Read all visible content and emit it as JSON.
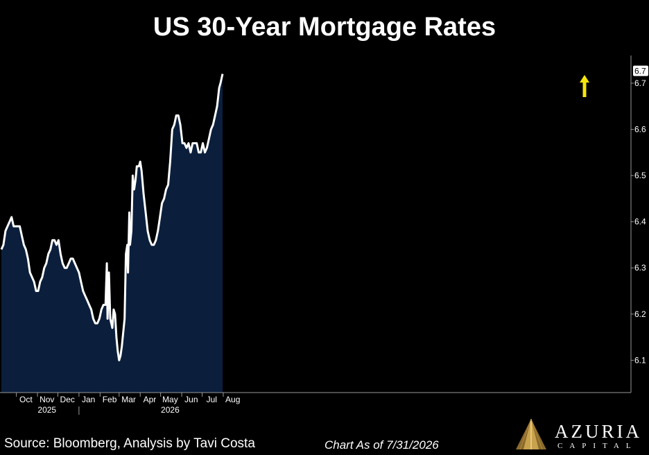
{
  "header": {
    "title": "US 30-Year Mortgage Rates"
  },
  "footer": {
    "source": "Source: Bloomberg, Analysis by Tavi Costa",
    "as_of": "Chart As of 7/31/2026"
  },
  "logo": {
    "word": "AZURIA",
    "sub": "CAPITAL"
  },
  "colors": {
    "background": "#000000",
    "area_fill": "#0b1f3d",
    "line": "#ffffff",
    "arrow": "#f5e60a",
    "axis": "#9a9a9a",
    "last_value_badge_bg": "#ffffff",
    "last_value_badge_text": "#000000"
  },
  "chart_data": {
    "type": "area",
    "title": "US 30-Year Mortgage Rates",
    "xlabel": "",
    "ylabel": "",
    "y_axis_side": "right",
    "ylim": [
      6.03,
      6.76
    ],
    "y_ticks": [
      6.1,
      6.2,
      6.3,
      6.4,
      6.5,
      6.6,
      6.7
    ],
    "y_tick_labels": [
      "6.1",
      "6.2",
      "6.3",
      "6.4",
      "6.5",
      "6.6",
      "6.7"
    ],
    "x_months": [
      {
        "label": "Oct",
        "date": "2025-10-15"
      },
      {
        "label": "Nov",
        "date": "2025-11-15"
      },
      {
        "label": "Dec",
        "date": "2025-12-15"
      },
      {
        "label": "Jan",
        "date": "2026-01-15"
      },
      {
        "label": "Feb",
        "date": "2026-02-15"
      },
      {
        "label": "Mar",
        "date": "2026-03-15"
      },
      {
        "label": "Apr",
        "date": "2026-04-15"
      },
      {
        "label": "May",
        "date": "2026-05-15"
      },
      {
        "label": "Jun",
        "date": "2026-06-15"
      },
      {
        "label": "Jul",
        "date": "2026-07-15"
      },
      {
        "label": "Aug",
        "date": "2026-08-15"
      }
    ],
    "x_years": [
      {
        "label": "2025",
        "date": "2025-11-15"
      },
      {
        "label": "2026",
        "date": "2026-05-15"
      }
    ],
    "year_divider_date": "2026-01-01",
    "last_value_label": "6.7",
    "annotation": "up-arrow",
    "legend": "none",
    "grid": false,
    "series": [
      {
        "points": [
          [
            "2025-09-09",
            6.34
          ],
          [
            "2025-09-12",
            6.35
          ],
          [
            "2025-09-15",
            6.38
          ],
          [
            "2025-09-18",
            6.39
          ],
          [
            "2025-09-21",
            6.4
          ],
          [
            "2025-09-24",
            6.41
          ],
          [
            "2025-09-27",
            6.39
          ],
          [
            "2025-09-30",
            6.39
          ],
          [
            "2025-10-03",
            6.39
          ],
          [
            "2025-10-06",
            6.39
          ],
          [
            "2025-10-09",
            6.37
          ],
          [
            "2025-10-12",
            6.35
          ],
          [
            "2025-10-15",
            6.34
          ],
          [
            "2025-10-18",
            6.32
          ],
          [
            "2025-10-21",
            6.29
          ],
          [
            "2025-10-24",
            6.28
          ],
          [
            "2025-10-27",
            6.27
          ],
          [
            "2025-10-30",
            6.25
          ],
          [
            "2025-11-02",
            6.25
          ],
          [
            "2025-11-05",
            6.27
          ],
          [
            "2025-11-08",
            6.28
          ],
          [
            "2025-11-11",
            6.3
          ],
          [
            "2025-11-14",
            6.31
          ],
          [
            "2025-11-17",
            6.33
          ],
          [
            "2025-11-20",
            6.34
          ],
          [
            "2025-11-23",
            6.36
          ],
          [
            "2025-11-26",
            6.36
          ],
          [
            "2025-11-29",
            6.35
          ],
          [
            "2025-12-02",
            6.36
          ],
          [
            "2025-12-05",
            6.33
          ],
          [
            "2025-12-08",
            6.31
          ],
          [
            "2025-12-11",
            6.3
          ],
          [
            "2025-12-14",
            6.3
          ],
          [
            "2025-12-17",
            6.31
          ],
          [
            "2025-12-20",
            6.32
          ],
          [
            "2025-12-23",
            6.32
          ],
          [
            "2025-12-26",
            6.31
          ],
          [
            "2025-12-29",
            6.3
          ],
          [
            "2026-01-01",
            6.29
          ],
          [
            "2026-01-04",
            6.27
          ],
          [
            "2026-01-07",
            6.25
          ],
          [
            "2026-01-10",
            6.24
          ],
          [
            "2026-01-13",
            6.23
          ],
          [
            "2026-01-16",
            6.22
          ],
          [
            "2026-01-19",
            6.21
          ],
          [
            "2026-01-22",
            6.19
          ],
          [
            "2026-01-25",
            6.18
          ],
          [
            "2026-01-28",
            6.18
          ],
          [
            "2026-01-31",
            6.19
          ],
          [
            "2026-02-03",
            6.21
          ],
          [
            "2026-02-06",
            6.22
          ],
          [
            "2026-02-09",
            6.22
          ],
          [
            "2026-02-11",
            6.31
          ],
          [
            "2026-02-12",
            6.19
          ],
          [
            "2026-02-14",
            6.29
          ],
          [
            "2026-02-16",
            6.19
          ],
          [
            "2026-02-19",
            6.17
          ],
          [
            "2026-02-21",
            6.21
          ],
          [
            "2026-02-23",
            6.2
          ],
          [
            "2026-02-25",
            6.15
          ],
          [
            "2026-02-27",
            6.12
          ],
          [
            "2026-03-01",
            6.1
          ],
          [
            "2026-03-03",
            6.11
          ],
          [
            "2026-03-05",
            6.13
          ],
          [
            "2026-03-07",
            6.16
          ],
          [
            "2026-03-09",
            6.19
          ],
          [
            "2026-03-11",
            6.33
          ],
          [
            "2026-03-13",
            6.35
          ],
          [
            "2026-03-14",
            6.29
          ],
          [
            "2026-03-16",
            6.42
          ],
          [
            "2026-03-17",
            6.35
          ],
          [
            "2026-03-19",
            6.38
          ],
          [
            "2026-03-21",
            6.5
          ],
          [
            "2026-03-23",
            6.47
          ],
          [
            "2026-03-25",
            6.49
          ],
          [
            "2026-03-27",
            6.52
          ],
          [
            "2026-03-30",
            6.52
          ],
          [
            "2026-04-01",
            6.53
          ],
          [
            "2026-04-03",
            6.51
          ],
          [
            "2026-04-06",
            6.46
          ],
          [
            "2026-04-09",
            6.42
          ],
          [
            "2026-04-12",
            6.38
          ],
          [
            "2026-04-15",
            6.36
          ],
          [
            "2026-04-18",
            6.35
          ],
          [
            "2026-04-21",
            6.35
          ],
          [
            "2026-04-24",
            6.36
          ],
          [
            "2026-04-27",
            6.38
          ],
          [
            "2026-04-30",
            6.41
          ],
          [
            "2026-05-03",
            6.44
          ],
          [
            "2026-05-06",
            6.45
          ],
          [
            "2026-05-09",
            6.47
          ],
          [
            "2026-05-12",
            6.48
          ],
          [
            "2026-05-15",
            6.53
          ],
          [
            "2026-05-18",
            6.6
          ],
          [
            "2026-05-21",
            6.61
          ],
          [
            "2026-05-24",
            6.63
          ],
          [
            "2026-05-27",
            6.63
          ],
          [
            "2026-05-30",
            6.61
          ],
          [
            "2026-06-02",
            6.57
          ],
          [
            "2026-06-05",
            6.57
          ],
          [
            "2026-06-08",
            6.56
          ],
          [
            "2026-06-11",
            6.57
          ],
          [
            "2026-06-14",
            6.55
          ],
          [
            "2026-06-17",
            6.57
          ],
          [
            "2026-06-20",
            6.57
          ],
          [
            "2026-06-23",
            6.57
          ],
          [
            "2026-06-26",
            6.55
          ],
          [
            "2026-06-29",
            6.55
          ],
          [
            "2026-07-02",
            6.57
          ],
          [
            "2026-07-05",
            6.55
          ],
          [
            "2026-07-08",
            6.56
          ],
          [
            "2026-07-11",
            6.58
          ],
          [
            "2026-07-14",
            6.6
          ],
          [
            "2026-07-17",
            6.61
          ],
          [
            "2026-07-20",
            6.63
          ],
          [
            "2026-07-23",
            6.65
          ],
          [
            "2026-07-26",
            6.69
          ],
          [
            "2026-07-28",
            6.7
          ],
          [
            "2026-07-31",
            6.72
          ]
        ]
      }
    ]
  }
}
